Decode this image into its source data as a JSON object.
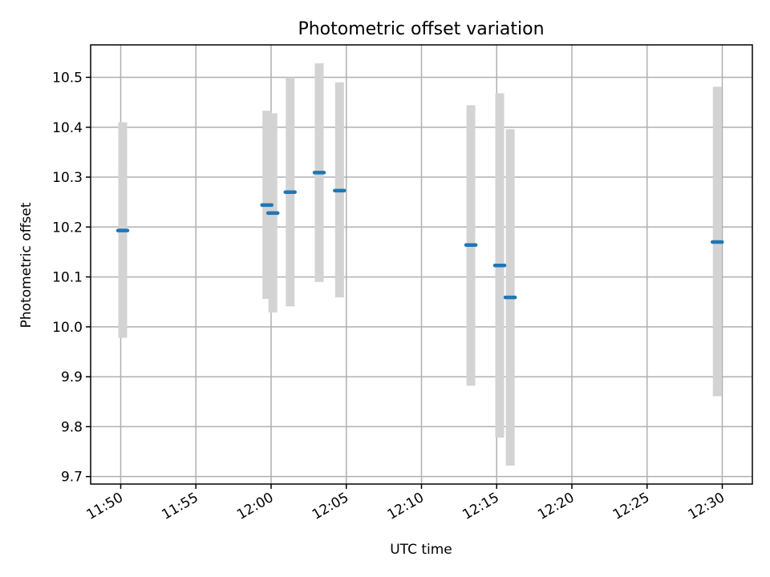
{
  "chart_data": {
    "type": "scatter",
    "title": "Photometric offset variation",
    "xlabel": "UTC time",
    "ylabel": "Photometric offset",
    "x_ticks": [
      "11:50",
      "11:55",
      "12:00",
      "12:05",
      "12:10",
      "12:15",
      "12:20",
      "12:25",
      "12:30"
    ],
    "y_ticks": [
      "9.7",
      "9.8",
      "9.9",
      "10.0",
      "10.1",
      "10.2",
      "10.3",
      "10.4",
      "10.5"
    ],
    "xlim": [
      "11:48",
      "12:32"
    ],
    "ylim": [
      9.685,
      10.565
    ],
    "grid": true,
    "points": [
      {
        "time": "11:50:08",
        "value": 10.193,
        "err_low": 9.978,
        "err_high": 10.41
      },
      {
        "time": "11:59:43",
        "value": 10.244,
        "err_low": 10.056,
        "err_high": 10.433
      },
      {
        "time": "12:00:07",
        "value": 10.228,
        "err_low": 10.029,
        "err_high": 10.428
      },
      {
        "time": "12:01:16",
        "value": 10.27,
        "err_low": 10.041,
        "err_high": 10.5
      },
      {
        "time": "12:03:12",
        "value": 10.309,
        "err_low": 10.09,
        "err_high": 10.528
      },
      {
        "time": "12:04:33",
        "value": 10.273,
        "err_low": 10.059,
        "err_high": 10.49
      },
      {
        "time": "12:13:17",
        "value": 10.164,
        "err_low": 9.882,
        "err_high": 10.444
      },
      {
        "time": "12:15:12",
        "value": 10.123,
        "err_low": 9.778,
        "err_high": 10.468
      },
      {
        "time": "12:15:54",
        "value": 10.059,
        "err_low": 9.722,
        "err_high": 10.396
      },
      {
        "time": "12:29:40",
        "value": 10.17,
        "err_low": 9.861,
        "err_high": 10.481
      }
    ],
    "colors": {
      "point": "#1f77b4",
      "errorbar": "#d3d3d3"
    }
  }
}
